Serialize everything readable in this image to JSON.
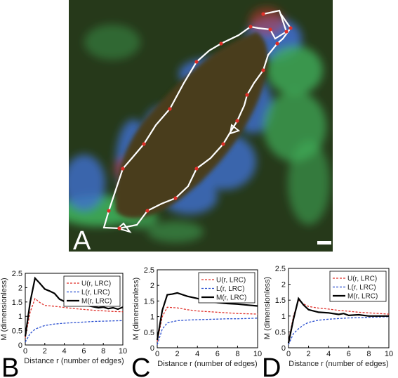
{
  "figure": {
    "micrograph": {
      "panel_letter": "A",
      "colors": {
        "background": "#26391a",
        "cell_body": "#4a3d1a",
        "blue_stain": "#3f6fd1",
        "green_stain": "#3fae5a",
        "red_dot": "#e0302a",
        "path": "#ffffff"
      }
    }
  },
  "chart_data": [
    {
      "panel_letter": "B",
      "type": "line",
      "xlabel": "Distance r (number of edges)",
      "ylabel": "M (dimensionless)",
      "xlim": [
        0,
        10
      ],
      "ylim": [
        0,
        2.5
      ],
      "xticks": [
        "0",
        "2",
        "4",
        "6",
        "8",
        "10"
      ],
      "yticks": [
        "0",
        "0.5",
        "1",
        "1.5",
        "2",
        "2.5"
      ],
      "legend_position": "top-right",
      "series": [
        {
          "name": "U(r, LRC)",
          "color": "#e0302a",
          "style": "dashed",
          "x": [
            0,
            0.5,
            1,
            1.5,
            2,
            3,
            4,
            5,
            6,
            7,
            8,
            9,
            10
          ],
          "y": [
            0.25,
            1.15,
            1.62,
            1.48,
            1.38,
            1.35,
            1.31,
            1.27,
            1.24,
            1.21,
            1.19,
            1.17,
            1.16
          ]
        },
        {
          "name": "L(r, LRC)",
          "color": "#2a4fd0",
          "style": "dashed",
          "x": [
            0,
            0.5,
            1,
            1.5,
            2,
            3,
            4,
            5,
            6,
            7,
            8,
            9,
            10
          ],
          "y": [
            0.1,
            0.4,
            0.55,
            0.62,
            0.68,
            0.73,
            0.76,
            0.78,
            0.8,
            0.82,
            0.83,
            0.84,
            0.85
          ]
        },
        {
          "name": "M(r, LRC)",
          "color": "#000000",
          "style": "solid",
          "x": [
            0,
            0.5,
            1,
            1.5,
            2,
            2.5,
            3,
            3.5,
            4,
            5,
            6,
            7,
            7.5,
            8,
            8.5,
            9,
            9.5,
            10
          ],
          "y": [
            0.3,
            1.5,
            2.33,
            2.15,
            1.95,
            1.88,
            1.8,
            1.6,
            1.52,
            1.47,
            1.4,
            1.33,
            1.3,
            1.32,
            1.27,
            1.3,
            1.25,
            1.32
          ]
        }
      ]
    },
    {
      "panel_letter": "C",
      "type": "line",
      "xlabel": "Distance r (number of edges)",
      "ylabel": "M (dimensionless)",
      "xlim": [
        0,
        10
      ],
      "ylim": [
        0,
        2.5
      ],
      "xticks": [
        "0",
        "2",
        "4",
        "6",
        "8",
        "10"
      ],
      "yticks": [
        "0",
        "0.5",
        "1",
        "1.5",
        "2",
        "2.5"
      ],
      "legend_position": "top-right",
      "series": [
        {
          "name": "U(r, LRC)",
          "color": "#e0302a",
          "style": "dashed",
          "x": [
            0,
            0.5,
            1,
            2,
            3,
            4,
            5,
            6,
            7,
            8,
            9,
            10
          ],
          "y": [
            0.2,
            1.0,
            1.3,
            1.28,
            1.22,
            1.18,
            1.16,
            1.14,
            1.12,
            1.1,
            1.09,
            1.08
          ]
        },
        {
          "name": "L(r, LRC)",
          "color": "#2a4fd0",
          "style": "dashed",
          "x": [
            0,
            0.5,
            1,
            2,
            3,
            4,
            5,
            6,
            7,
            8,
            9,
            10
          ],
          "y": [
            0.1,
            0.6,
            0.8,
            0.87,
            0.89,
            0.9,
            0.91,
            0.92,
            0.93,
            0.93,
            0.94,
            0.95
          ]
        },
        {
          "name": "M(r, LRC)",
          "color": "#000000",
          "style": "solid",
          "x": [
            0,
            0.5,
            1,
            1.5,
            2,
            3,
            4,
            5,
            6,
            7,
            8,
            9,
            10
          ],
          "y": [
            0.25,
            1.2,
            1.7,
            1.72,
            1.76,
            1.65,
            1.58,
            1.5,
            1.45,
            1.42,
            1.4,
            1.37,
            1.34
          ]
        }
      ]
    },
    {
      "panel_letter": "D",
      "type": "line",
      "xlabel": "Distance r (number of edges)",
      "ylabel": "M (dimensionless)",
      "xlim": [
        0,
        10
      ],
      "ylim": [
        0,
        2.5
      ],
      "xticks": [
        "0",
        "2",
        "4",
        "6",
        "8",
        "10"
      ],
      "yticks": [
        "0",
        "0.5",
        "1",
        "1.5",
        "2",
        "2.5"
      ],
      "legend_position": "top-right",
      "series": [
        {
          "name": "U(r, LRC)",
          "color": "#e0302a",
          "style": "dashed",
          "x": [
            0,
            0.5,
            1,
            1.5,
            2,
            3,
            4,
            5,
            6,
            7,
            8,
            9,
            10
          ],
          "y": [
            0.2,
            1.0,
            1.5,
            1.38,
            1.3,
            1.25,
            1.22,
            1.18,
            1.15,
            1.12,
            1.1,
            1.08,
            1.06
          ]
        },
        {
          "name": "L(r, LRC)",
          "color": "#2a4fd0",
          "style": "dashed",
          "x": [
            0,
            0.5,
            1,
            1.5,
            2,
            3,
            4,
            5,
            6,
            7,
            8,
            9,
            10
          ],
          "y": [
            0.1,
            0.45,
            0.6,
            0.72,
            0.8,
            0.87,
            0.9,
            0.92,
            0.94,
            0.95,
            0.96,
            0.97,
            0.98
          ]
        },
        {
          "name": "M(r, LRC)",
          "color": "#000000",
          "style": "solid",
          "x": [
            0,
            0.5,
            1,
            1.5,
            2,
            3,
            4,
            5,
            5.5,
            6,
            7,
            8,
            9,
            10
          ],
          "y": [
            0.15,
            0.9,
            1.55,
            1.35,
            1.2,
            1.12,
            1.1,
            1.05,
            1.08,
            1.02,
            1.04,
            1.0,
            1.0,
            1.0
          ]
        }
      ]
    }
  ]
}
